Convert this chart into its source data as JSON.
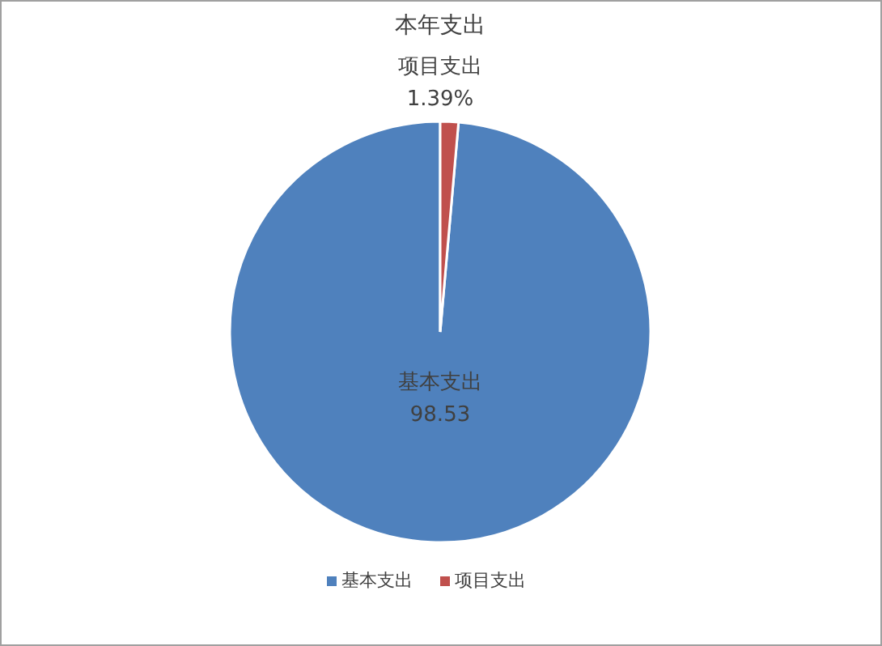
{
  "chart_data": {
    "type": "pie",
    "title": "本年支出",
    "categories": [
      "基本支出",
      "项目支出"
    ],
    "values": [
      98.53,
      1.39
    ],
    "value_labels": [
      "98.53",
      "1.39%"
    ],
    "colors": [
      "#4f81bd",
      "#c0504d"
    ],
    "legend": "bottom"
  }
}
